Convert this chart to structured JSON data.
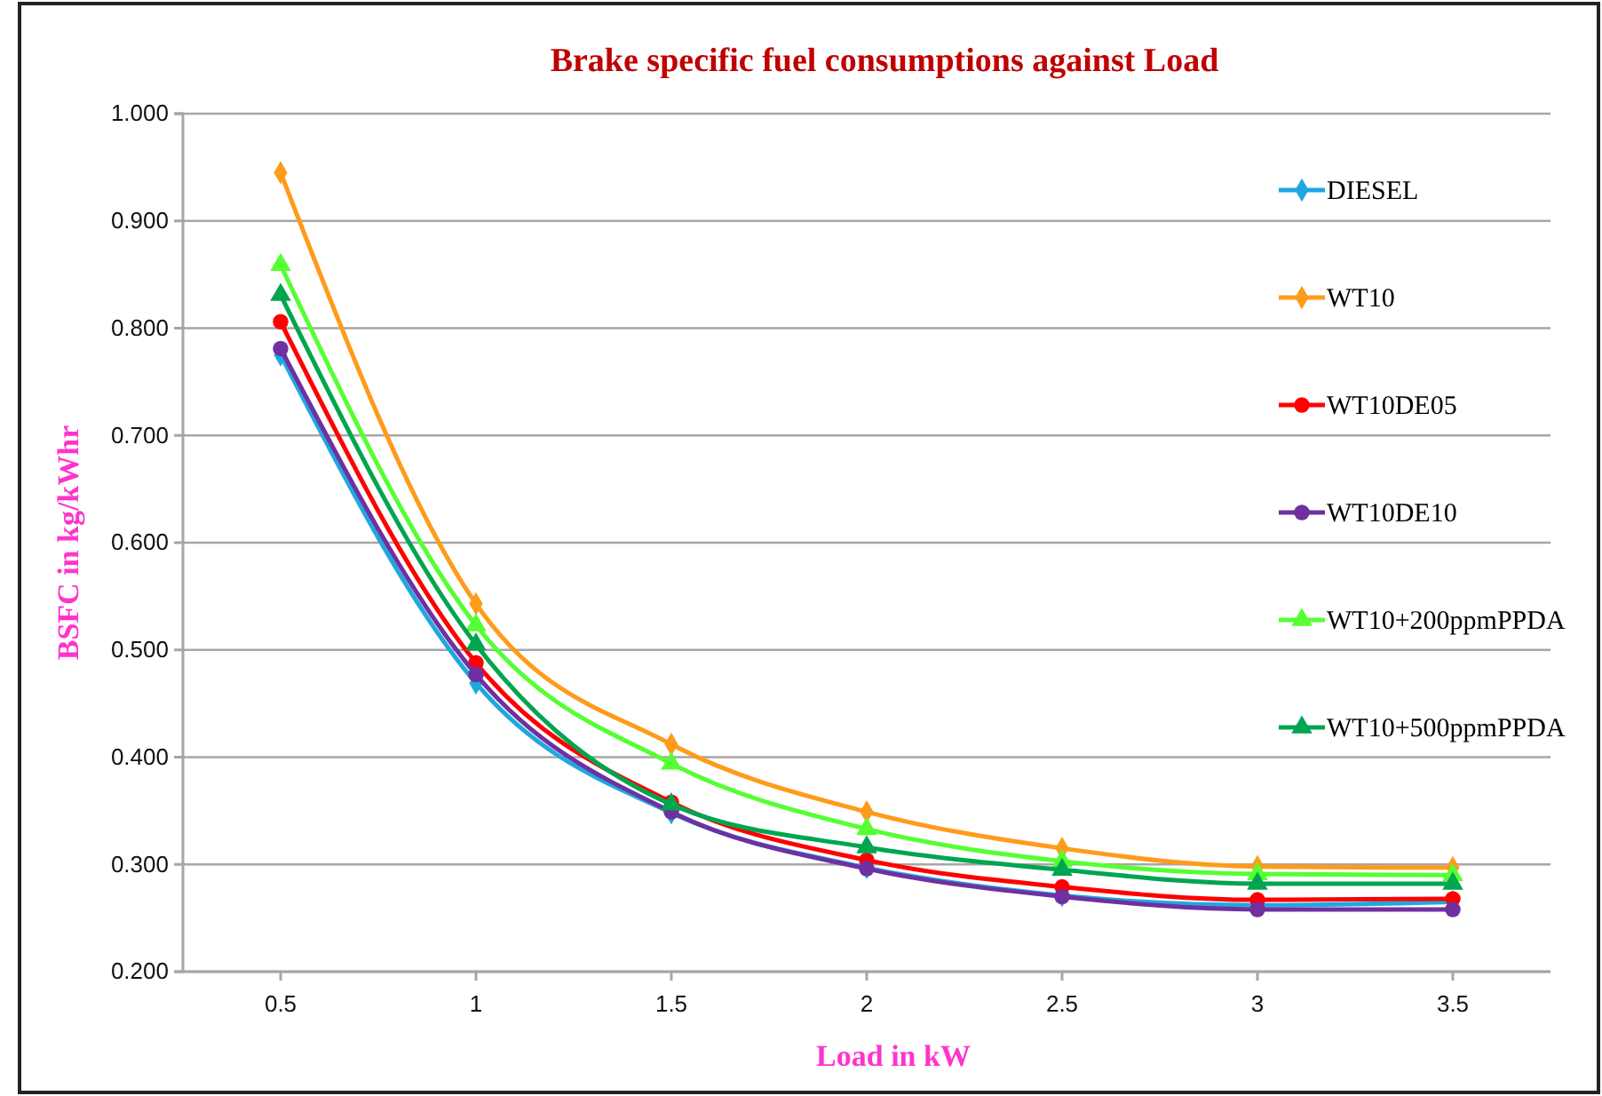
{
  "chart_data": {
    "type": "line",
    "title": "Brake specific fuel consumptions against Load",
    "xlabel": "Load in kW",
    "ylabel": "BSFC in kg/kWhr",
    "categories": [
      "0.5",
      "1",
      "1.5",
      "2",
      "2.5",
      "3",
      "3.5"
    ],
    "ylim": [
      0.2,
      1.0
    ],
    "yticks": [
      {
        "value": 0.2,
        "label": "0.200"
      },
      {
        "value": 0.3,
        "label": "0.300"
      },
      {
        "value": 0.4,
        "label": "0.400"
      },
      {
        "value": 0.5,
        "label": "0.500"
      },
      {
        "value": 0.6,
        "label": "0.600"
      },
      {
        "value": 0.7,
        "label": "0.700"
      },
      {
        "value": 0.8,
        "label": "0.800"
      },
      {
        "value": 0.9,
        "label": "0.900"
      },
      {
        "value": 1.0,
        "label": "1.000"
      }
    ],
    "grid": "y",
    "legend": "top right",
    "line_style": "solid",
    "series": [
      {
        "name": "DIESEL",
        "color": "#1fa8e0",
        "marker": "diamond",
        "values": [
          0.775,
          0.469,
          0.348,
          0.297,
          0.271,
          0.262,
          0.265
        ]
      },
      {
        "name": "WT10",
        "color": "#ff9b1a",
        "marker": "diamond",
        "values": [
          0.945,
          0.543,
          0.412,
          0.349,
          0.315,
          0.298,
          0.297
        ]
      },
      {
        "name": "WT10DE05",
        "color": "#ff0000",
        "marker": "circle",
        "values": [
          0.806,
          0.488,
          0.358,
          0.304,
          0.279,
          0.267,
          0.268
        ]
      },
      {
        "name": "WT10DE10",
        "color": "#7030a0",
        "marker": "circle",
        "values": [
          0.781,
          0.477,
          0.349,
          0.296,
          0.27,
          0.258,
          0.258
        ]
      },
      {
        "name": "WT10+200ppmPPDA",
        "color": "#55ff33",
        "marker": "triangle",
        "values": [
          0.859,
          0.523,
          0.394,
          0.333,
          0.303,
          0.291,
          0.29
        ]
      },
      {
        "name": "WT10+500ppmPPDA",
        "color": "#00a550",
        "marker": "triangle",
        "values": [
          0.831,
          0.505,
          0.356,
          0.316,
          0.295,
          0.282,
          0.282
        ]
      }
    ]
  }
}
